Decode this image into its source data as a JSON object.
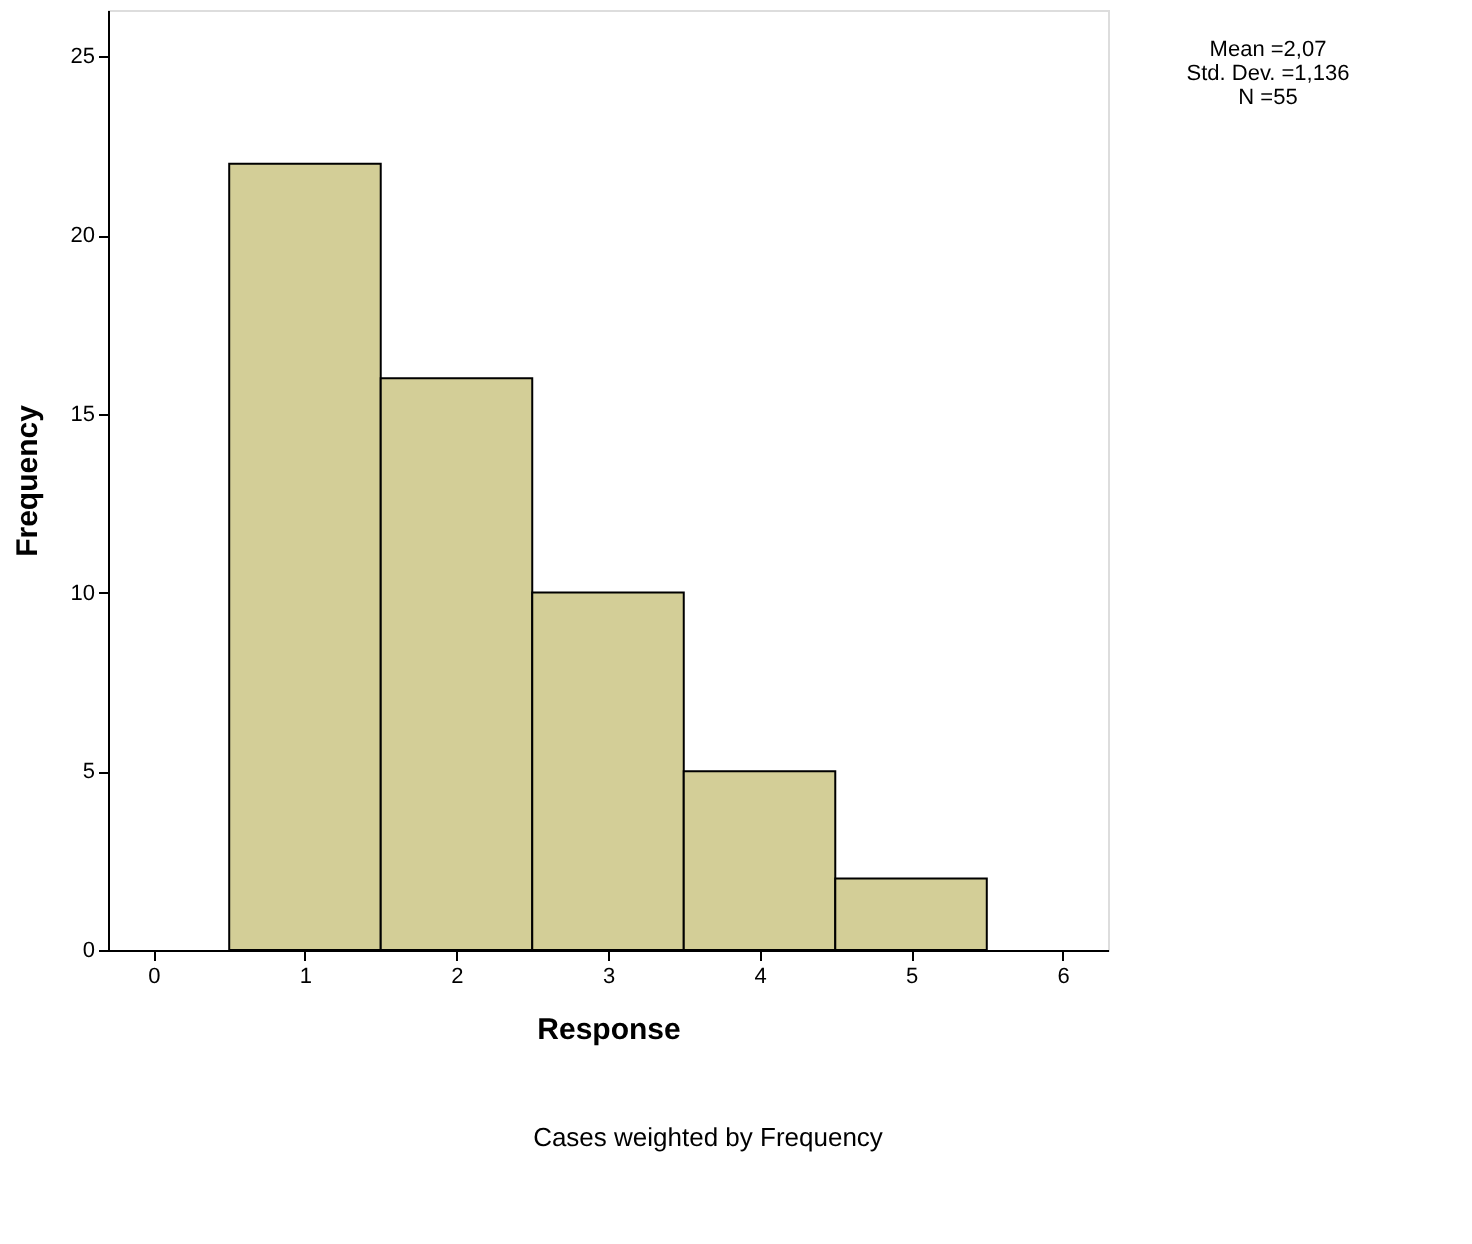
{
  "chart_data": {
    "type": "histogram",
    "xlabel": "Response",
    "ylabel": "Frequency",
    "bins": [
      0.5,
      1.5,
      2.5,
      3.5,
      4.5,
      5.5
    ],
    "values": [
      22,
      16,
      10,
      5,
      2
    ],
    "color": "#d3ce97",
    "xlim": [
      -0.3,
      6.3
    ],
    "xticks": [
      0,
      1,
      2,
      3,
      4,
      5,
      6
    ],
    "ylim": [
      0,
      26.3
    ],
    "yticks": [
      0,
      5,
      10,
      15,
      20,
      25
    ],
    "grid": false,
    "annotations": [
      "Mean =2,07",
      "Std. Dev. =1,136",
      "N =55",
      "Cases weighted by Frequency"
    ]
  }
}
